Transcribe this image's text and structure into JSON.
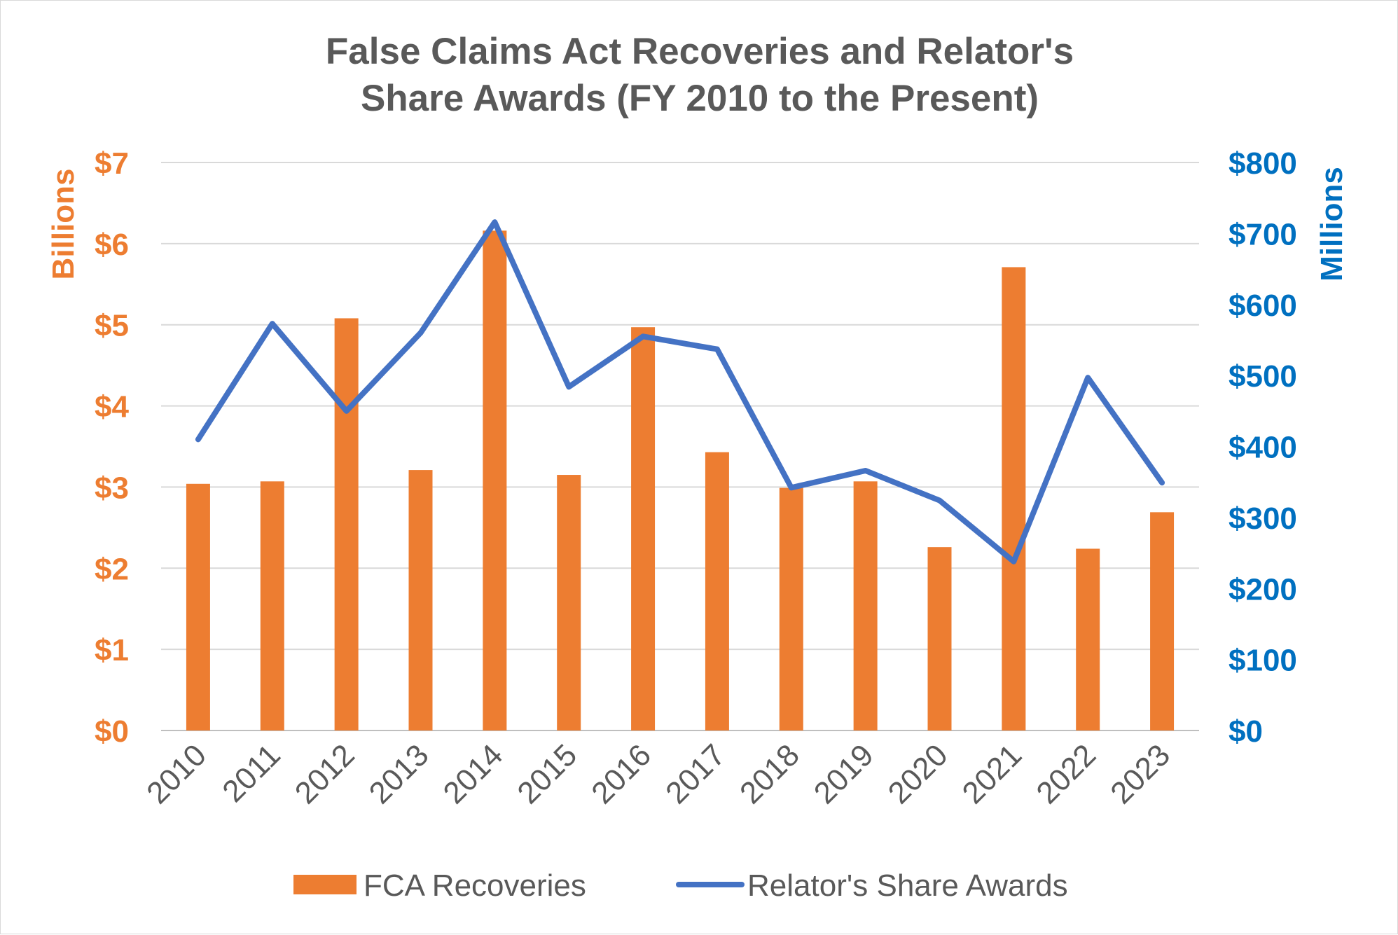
{
  "chart_data": {
    "type": "bar",
    "title": [
      "False Claims Act Recoveries and Relator's",
      "Share Awards (FY 2010 to the Present)"
    ],
    "categories": [
      "2010",
      "2011",
      "2012",
      "2013",
      "2014",
      "2015",
      "2016",
      "2017",
      "2018",
      "2019",
      "2020",
      "2021",
      "2022",
      "2023"
    ],
    "series": [
      {
        "name": "FCA Recoveries",
        "type": "bar",
        "axis": "left",
        "color": "#ed7d31",
        "values": [
          3.04,
          3.07,
          5.08,
          3.21,
          6.16,
          3.15,
          4.97,
          3.43,
          2.99,
          3.07,
          2.26,
          5.71,
          2.24,
          2.69
        ]
      },
      {
        "name": "Relator's Share Awards",
        "type": "line",
        "axis": "right",
        "color": "#4472c4",
        "values": [
          410,
          573,
          450,
          560,
          716,
          484,
          555,
          537,
          342,
          366,
          324,
          238,
          497,
          349
        ]
      }
    ],
    "y_left": {
      "label": "Billions",
      "ylim": [
        0,
        7
      ],
      "ticks": [
        "$0",
        "$1",
        "$2",
        "$3",
        "$4",
        "$5",
        "$6",
        "$7"
      ],
      "color": "#ed7d31"
    },
    "y_right": {
      "label": "Millions",
      "ylim": [
        0,
        800
      ],
      "ticks": [
        "$0",
        "$100",
        "$200",
        "$300",
        "$400",
        "$500",
        "$600",
        "$700",
        "$800"
      ],
      "color": "#0070c0"
    },
    "grid": true,
    "legend": {
      "position": "bottom",
      "entries": [
        "FCA Recoveries",
        "Relator's Share Awards"
      ]
    }
  }
}
